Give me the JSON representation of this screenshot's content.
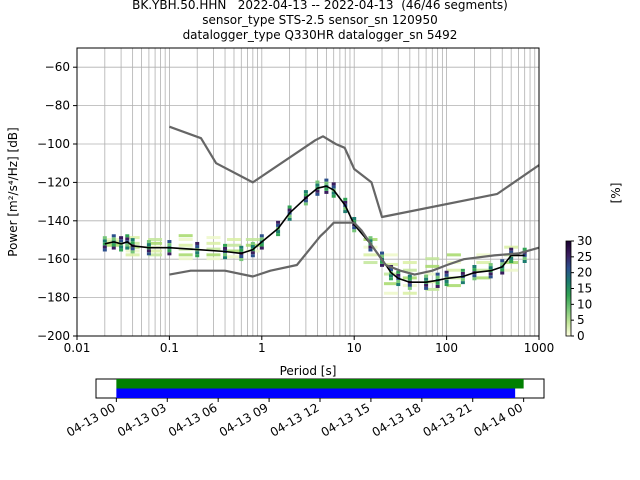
{
  "title": {
    "line1": "BK.YBH.50.HHN   2022-04-13 -- 2022-04-13  (46/46 segments)",
    "line2": "sensor_type STS-2.5 sensor_sn 120950",
    "line3": "datalogger_type Q330HR datalogger_sn 5492"
  },
  "chart_data": [
    {
      "type": "heatmap",
      "xlabel": "Period [s]",
      "ylabel": "Power [m²/s⁴/Hz] [dB]",
      "xscale": "log",
      "xlim": [
        0.01,
        1000
      ],
      "ylim": [
        -200,
        -50
      ],
      "x_ticks": [
        0.01,
        0.1,
        1,
        10,
        100,
        1000
      ],
      "x_tick_labels": [
        "0.01",
        "0.1",
        "1",
        "10",
        "100",
        "1000"
      ],
      "y_ticks": [
        -200,
        -180,
        -160,
        -140,
        -120,
        -100,
        -80,
        -60
      ],
      "y_tick_labels": [
        "−200",
        "−180",
        "−160",
        "−140",
        "−120",
        "−100",
        "−80",
        "−60"
      ],
      "grid": true,
      "series": [
        {
          "role": "mode",
          "color": "#000000",
          "points": [
            [
              0.02,
              -152
            ],
            [
              0.025,
              -151
            ],
            [
              0.03,
              -152
            ],
            [
              0.035,
              -151
            ],
            [
              0.04,
              -153
            ],
            [
              0.06,
              -154
            ],
            [
              0.1,
              -154
            ],
            [
              0.2,
              -155
            ],
            [
              0.4,
              -156
            ],
            [
              0.6,
              -157
            ],
            [
              0.8,
              -155
            ],
            [
              1,
              -151
            ],
            [
              1.5,
              -144
            ],
            [
              2,
              -136
            ],
            [
              3,
              -128
            ],
            [
              4,
              -123
            ],
            [
              5,
              -122
            ],
            [
              6,
              -124
            ],
            [
              8,
              -132
            ],
            [
              10,
              -142
            ],
            [
              15,
              -152
            ],
            [
              20,
              -160
            ],
            [
              25,
              -167
            ],
            [
              30,
              -170
            ],
            [
              40,
              -172
            ],
            [
              60,
              -172
            ],
            [
              80,
              -171
            ],
            [
              100,
              -170
            ],
            [
              150,
              -169
            ],
            [
              200,
              -167
            ],
            [
              300,
              -166
            ],
            [
              400,
              -164
            ],
            [
              500,
              -158
            ],
            [
              700,
              -158
            ]
          ]
        },
        {
          "role": "noise-model-high",
          "color": "#666666",
          "points": [
            [
              0.1,
              -91
            ],
            [
              0.22,
              -97
            ],
            [
              0.32,
              -110
            ],
            [
              0.8,
              -120
            ],
            [
              3.8,
              -98
            ],
            [
              4.6,
              -96
            ],
            [
              6.3,
              -100
            ],
            [
              7.9,
              -102
            ],
            [
              10,
              -113
            ],
            [
              15.4,
              -120
            ],
            [
              20,
              -138
            ],
            [
              354,
              -126
            ],
            [
              1000,
              -111
            ]
          ]
        },
        {
          "role": "noise-model-low",
          "color": "#666666",
          "points": [
            [
              0.1,
              -168
            ],
            [
              0.17,
              -166
            ],
            [
              0.4,
              -166
            ],
            [
              0.8,
              -169
            ],
            [
              1.24,
              -166
            ],
            [
              2.4,
              -163
            ],
            [
              4.3,
              -148
            ],
            [
              5,
              -145
            ],
            [
              6,
              -141
            ],
            [
              10,
              -141
            ],
            [
              12,
              -145
            ],
            [
              15.6,
              -153
            ],
            [
              21.9,
              -163
            ],
            [
              31.6,
              -166
            ],
            [
              45,
              -168
            ],
            [
              70,
              -166
            ],
            [
              101,
              -163
            ],
            [
              154,
              -160
            ],
            [
              328,
              -158
            ],
            [
              600,
              -157
            ],
            [
              1000,
              -154
            ]
          ]
        }
      ],
      "density": [
        {
          "period": 0.025,
          "dbs": [
            -150,
            -151,
            -152,
            -153
          ]
        },
        {
          "period": 0.04,
          "dbs": [
            -149,
            -152,
            -154,
            -156,
            -158
          ]
        },
        {
          "period": 0.07,
          "dbs": [
            -150,
            -152,
            -154,
            -156,
            -158
          ]
        },
        {
          "period": 0.15,
          "dbs": [
            -148,
            -150,
            -153,
            -155,
            -158,
            -160
          ]
        },
        {
          "period": 0.3,
          "dbs": [
            -149,
            -152,
            -155,
            -158,
            -160
          ]
        },
        {
          "period": 0.5,
          "dbs": [
            -150,
            -153,
            -156,
            -159
          ]
        },
        {
          "period": 0.8,
          "dbs": [
            -150,
            -153,
            -156
          ]
        },
        {
          "period": 15,
          "dbs": [
            -150,
            -154,
            -158,
            -162
          ]
        },
        {
          "period": 25,
          "dbs": [
            -158,
            -163,
            -168,
            -173,
            -178
          ]
        },
        {
          "period": 40,
          "dbs": [
            -162,
            -166,
            -170,
            -174,
            -178
          ]
        },
        {
          "period": 70,
          "dbs": [
            -160,
            -164,
            -168,
            -172,
            -176
          ]
        },
        {
          "period": 120,
          "dbs": [
            -158,
            -162,
            -166,
            -170,
            -174
          ]
        },
        {
          "period": 250,
          "dbs": [
            -158,
            -162,
            -166,
            -170
          ]
        },
        {
          "period": 500,
          "dbs": [
            -154,
            -158,
            -162,
            -166
          ]
        }
      ],
      "colorbar": {
        "label": "[%]",
        "range": [
          0,
          30
        ],
        "ticks": [
          0,
          5,
          10,
          15,
          20,
          25,
          30
        ],
        "colormap": [
          "#ffffe0",
          "#c2e699",
          "#78c679",
          "#31a354",
          "#1c7c6e",
          "#2c4f8c",
          "#3a1d5e",
          "#1a0030"
        ]
      }
    },
    {
      "type": "timeline",
      "x_tick_labels": [
        "04-13 00",
        "04-13 03",
        "04-13 06",
        "04-13 09",
        "04-13 12",
        "04-13 15",
        "04-13 18",
        "04-13 21",
        "04-14 00"
      ],
      "x_ticks_hours": [
        0,
        3,
        6,
        9,
        12,
        15,
        18,
        21,
        24
      ],
      "xlim_hours": [
        -1.2,
        25.2
      ],
      "bars": [
        {
          "role": "data-available",
          "color": "#008000",
          "start_hours": 0,
          "end_hours": 24
        },
        {
          "role": "psd-used",
          "color": "#0000ff",
          "start_hours": 0,
          "end_hours": 23.5
        }
      ]
    }
  ]
}
